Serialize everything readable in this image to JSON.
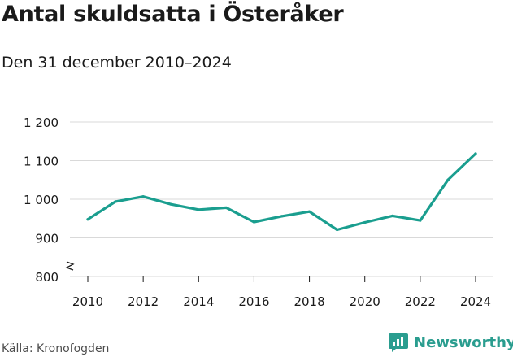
{
  "header": {
    "title": "Antal skuldsatta i Österåker",
    "subtitle": "Den 31 december 2010–2024"
  },
  "footer": {
    "source": "Källa: Kronofogden",
    "brand": "Newsworthy",
    "brand_color": "#2a9d8f"
  },
  "chart_data": {
    "type": "line",
    "title": "Antal skuldsatta i Österåker",
    "subtitle": "Den 31 december 2010–2024",
    "x": [
      2010,
      2011,
      2012,
      2013,
      2014,
      2015,
      2016,
      2017,
      2018,
      2019,
      2020,
      2021,
      2022,
      2023,
      2024
    ],
    "series": [
      {
        "values": [
          948,
          994,
          1007,
          987,
          973,
          978,
          941,
          956,
          968,
          921,
          940,
          957,
          945,
          1050,
          1118
        ],
        "color": "#1a9e8f"
      }
    ],
    "xticks": [
      "2010",
      "2012",
      "2014",
      "2016",
      "2018",
      "2020",
      "2022",
      "2024"
    ],
    "yticks": [
      "800",
      "900",
      "1 000",
      "1 100",
      "1 200"
    ],
    "ylim": [
      800,
      1200
    ],
    "xlim": [
      2010,
      2024
    ],
    "grid": true,
    "axis_break": true,
    "legend": "none"
  }
}
